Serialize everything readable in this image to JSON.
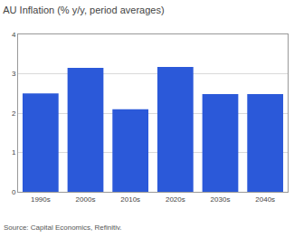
{
  "chart_data": {
    "type": "bar",
    "title": "AU Inflation (% y/y, period averages)",
    "categories": [
      "1990s",
      "2000s",
      "2010s",
      "2020s",
      "2030s",
      "2040s"
    ],
    "values": [
      2.5,
      3.15,
      2.1,
      3.17,
      2.48,
      2.48
    ],
    "color": "#2b59d9",
    "ylim": [
      0,
      4
    ],
    "yticks": [
      0,
      1,
      2,
      3,
      4
    ],
    "grid": true,
    "source": "Source: Capital Economics, Refinitiv."
  }
}
